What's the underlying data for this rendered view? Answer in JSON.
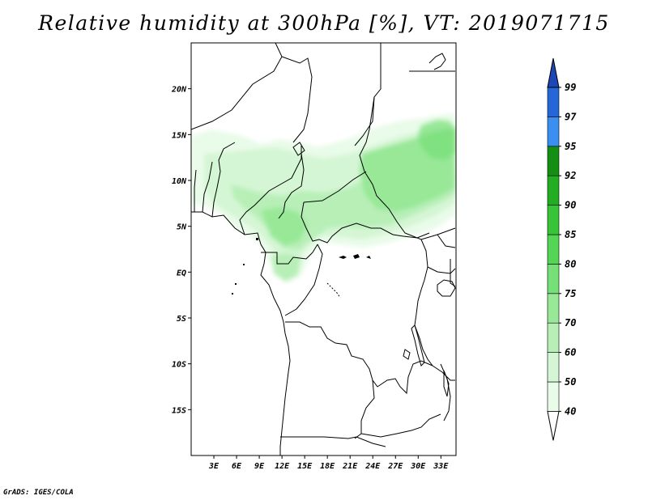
{
  "title": "Relative humidity at 300hPa [%], VT: 2019071715",
  "footer": "GrADS: IGES/COLA",
  "map": {
    "lon_range": [
      0,
      35
    ],
    "lat_range": [
      -20,
      25
    ],
    "lat_labels": [
      "20N",
      "15N",
      "10N",
      "5N",
      "EQ",
      "5S",
      "10S",
      "15S"
    ],
    "lat_values": [
      20,
      15,
      10,
      5,
      0,
      -5,
      -10,
      -15
    ],
    "lon_labels": [
      "3E",
      "6E",
      "9E",
      "12E",
      "15E",
      "18E",
      "21E",
      "24E",
      "27E",
      "30E",
      "33E"
    ],
    "lon_values": [
      3,
      6,
      9,
      12,
      15,
      18,
      21,
      24,
      27,
      30,
      33
    ]
  },
  "legend": {
    "labels": [
      "40",
      "50",
      "60",
      "70",
      "75",
      "80",
      "85",
      "90",
      "92",
      "95",
      "97",
      "99"
    ],
    "colors": [
      "#ffffff",
      "#e9fbe9",
      "#d4f6d4",
      "#b7efb7",
      "#98e898",
      "#77df77",
      "#55d555",
      "#37c537",
      "#22ad22",
      "#148f14",
      "#3a8ff0",
      "#2667d8",
      "#1e46b6"
    ]
  }
}
